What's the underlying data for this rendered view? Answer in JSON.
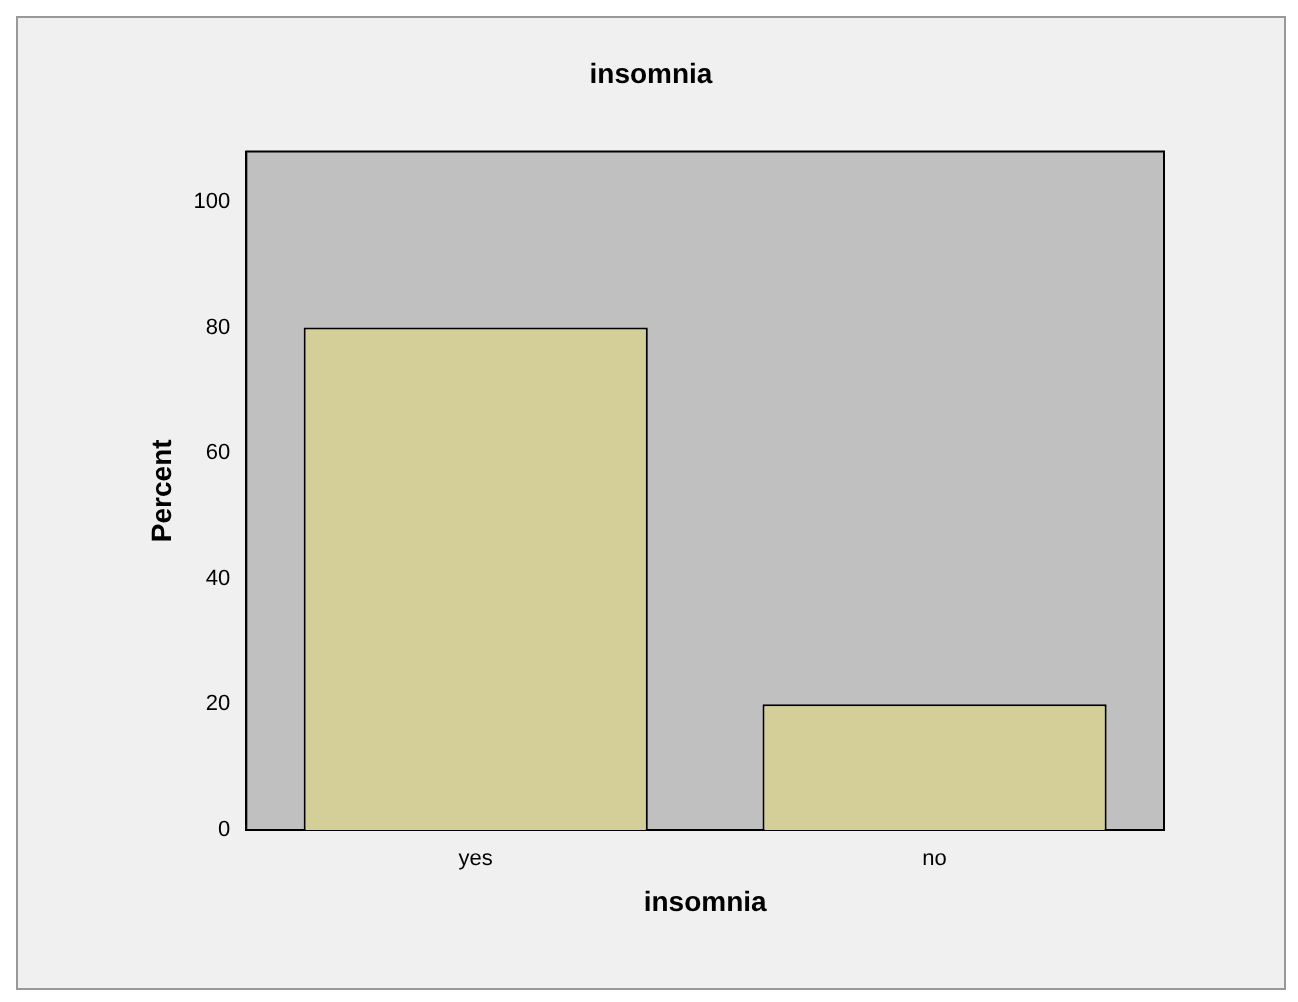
{
  "chart_data": {
    "type": "bar",
    "title": "insomnia",
    "xlabel": "insomnia",
    "ylabel": "Percent",
    "categories": [
      "yes",
      "no"
    ],
    "values": [
      80,
      20
    ],
    "color": "#d4cf98",
    "ylim": [
      0,
      108
    ],
    "yticks": [
      0,
      20,
      40,
      60,
      80,
      100
    ],
    "grid": false,
    "legend": false
  }
}
